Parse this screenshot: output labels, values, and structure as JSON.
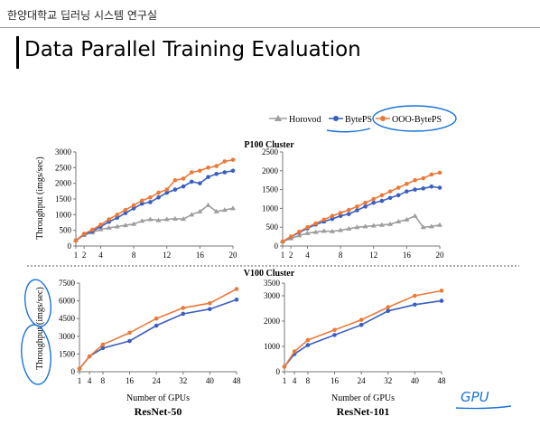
{
  "header": {
    "label": "한양대학교 딥러닝 시스템 연구실"
  },
  "slide": {
    "title": "Data Parallel Training Evaluation"
  },
  "legend": {
    "items": [
      {
        "name": "Horovod",
        "color": "#9e9e9e",
        "marker": "triangle"
      },
      {
        "name": "BytePS",
        "color": "#3a5fbf",
        "marker": "circle"
      },
      {
        "name": "OOO-BytePS",
        "color": "#ea7a3a",
        "marker": "circle"
      }
    ]
  },
  "labels": {
    "p100_cluster": "P100 Cluster",
    "v100_cluster": "V100 Cluster",
    "ylabel": "Throughput (imgs/sec)",
    "xlabel": "Number of GPUs",
    "resnet50": "ResNet-50",
    "resnet101": "ResNet-101"
  },
  "annotation": {
    "handwritten": "GPU"
  },
  "chart_data": [
    {
      "type": "line",
      "title": "P100 Cluster",
      "x": [
        1,
        2,
        3,
        4,
        5,
        6,
        7,
        8,
        9,
        10,
        11,
        12,
        13,
        14,
        15,
        16,
        17,
        18,
        19,
        20
      ],
      "xticks": [
        1,
        2,
        4,
        8,
        12,
        16,
        20
      ],
      "ylim": [
        0,
        3000
      ],
      "yticks": [
        0,
        500,
        1000,
        1500,
        2000,
        2500,
        3000
      ],
      "series": [
        {
          "name": "Horovod",
          "values": [
            180,
            350,
            430,
            530,
            580,
            620,
            660,
            700,
            800,
            850,
            820,
            850,
            870,
            860,
            1000,
            1100,
            1300,
            1100,
            1150,
            1200
          ]
        },
        {
          "name": "BytePS",
          "values": [
            180,
            370,
            470,
            620,
            770,
            900,
            1050,
            1200,
            1350,
            1400,
            1550,
            1700,
            1800,
            1900,
            2050,
            2000,
            2200,
            2300,
            2350,
            2400
          ]
        },
        {
          "name": "OOO-BytePS",
          "values": [
            180,
            390,
            520,
            680,
            850,
            1000,
            1150,
            1300,
            1450,
            1550,
            1700,
            1800,
            2100,
            2150,
            2350,
            2400,
            2500,
            2550,
            2700,
            2750
          ]
        }
      ]
    },
    {
      "type": "line",
      "title": "P100 Cluster",
      "x": [
        1,
        2,
        3,
        4,
        5,
        6,
        7,
        8,
        9,
        10,
        11,
        12,
        13,
        14,
        15,
        16,
        17,
        18,
        19,
        20
      ],
      "xticks": [
        1,
        2,
        4,
        8,
        12,
        16,
        20
      ],
      "ylim": [
        0,
        2500
      ],
      "yticks": [
        0,
        500,
        1000,
        1500,
        2000,
        2500
      ],
      "series": [
        {
          "name": "Horovod",
          "values": [
            120,
            200,
            280,
            340,
            370,
            400,
            390,
            420,
            460,
            500,
            520,
            540,
            560,
            580,
            650,
            700,
            800,
            500,
            520,
            560
          ]
        },
        {
          "name": "BytePS",
          "values": [
            120,
            240,
            360,
            470,
            570,
            650,
            720,
            800,
            850,
            950,
            1050,
            1150,
            1200,
            1280,
            1350,
            1450,
            1500,
            1530,
            1580,
            1550
          ]
        },
        {
          "name": "OOO-BytePS",
          "values": [
            120,
            250,
            380,
            500,
            600,
            700,
            800,
            880,
            960,
            1050,
            1150,
            1250,
            1350,
            1450,
            1550,
            1650,
            1750,
            1800,
            1900,
            1950
          ]
        }
      ]
    },
    {
      "type": "line",
      "title": "V100 Cluster",
      "xlabel": "Number of GPUs",
      "caption": "ResNet-50",
      "x": [
        1,
        4,
        8,
        16,
        24,
        32,
        40,
        48
      ],
      "xticks": [
        1,
        4,
        8,
        16,
        24,
        32,
        40,
        48
      ],
      "ylim": [
        0,
        7500
      ],
      "yticks": [
        0,
        1500,
        3000,
        4500,
        6000,
        7500
      ],
      "ytick_labels": [
        "0",
        "1500",
        "3000",
        "4500",
        "6000",
        "7500"
      ],
      "series": [
        {
          "name": "BytePS",
          "values": [
            250,
            1300,
            2000,
            2600,
            3900,
            4900,
            5300,
            6100
          ]
        },
        {
          "name": "OOO-BytePS",
          "values": [
            250,
            1300,
            2300,
            3300,
            4500,
            5400,
            5800,
            7000
          ]
        }
      ]
    },
    {
      "type": "line",
      "xlabel": "Number of GPUs",
      "caption": "ResNet-101",
      "x": [
        1,
        4,
        8,
        16,
        24,
        32,
        40,
        48
      ],
      "xticks": [
        1,
        4,
        8,
        16,
        24,
        32,
        40,
        48
      ],
      "ylim": [
        0,
        3500
      ],
      "yticks": [
        0,
        1000,
        2000,
        3000,
        3500
      ],
      "series": [
        {
          "name": "BytePS",
          "values": [
            200,
            700,
            1050,
            1450,
            1850,
            2400,
            2650,
            2800
          ]
        },
        {
          "name": "OOO-BytePS",
          "values": [
            200,
            800,
            1250,
            1650,
            2050,
            2550,
            3000,
            3200
          ]
        }
      ]
    }
  ]
}
